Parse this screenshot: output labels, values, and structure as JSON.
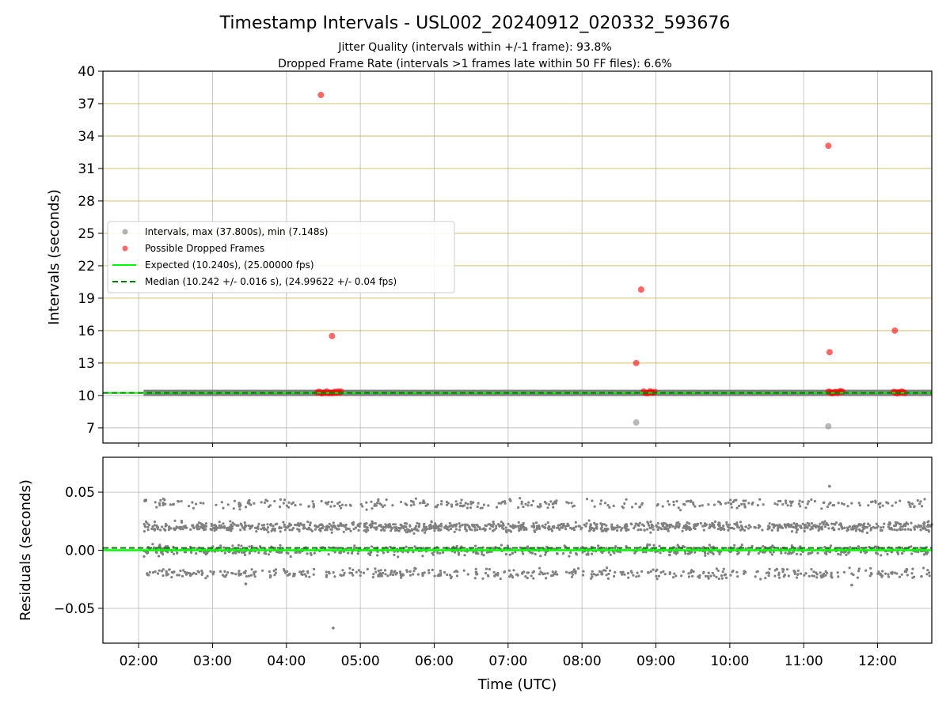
{
  "header": {
    "title": "Timestamp Intervals - USL002_20240912_020332_593676",
    "subtitle_line1": "Jitter Quality (intervals within +/-1 frame): 93.8%",
    "subtitle_line2": "Dropped Frame Rate (intervals >1 frames late within 50 FF files): 6.6%"
  },
  "colors": {
    "intervals": "#808080",
    "dropped": "#ff0000",
    "expected": "#00ff00",
    "median": "#008000",
    "hgrid_top": "#c8b04a",
    "grid": "#b0b0b0"
  },
  "chart_data": [
    {
      "type": "scatter",
      "ylabel": "Intervals (seconds)",
      "xlim": [
        "01:31",
        "12:44"
      ],
      "ylim": [
        5.6,
        40
      ],
      "yticks": [
        7,
        10,
        13,
        16,
        19,
        22,
        25,
        28,
        31,
        34,
        37,
        40
      ],
      "ytick_labels": [
        "7",
        "10",
        "13",
        "16",
        "19",
        "22",
        "25",
        "28",
        "31",
        "34",
        "37",
        "40"
      ],
      "grid": true,
      "legend_position": "center-left",
      "legend": [
        {
          "label": "Intervals, max (37.800s), min (7.148s)",
          "kind": "marker",
          "color": "#808080"
        },
        {
          "label": "Possible Dropped Frames",
          "kind": "marker",
          "color": "#ff0000"
        },
        {
          "label": "Expected (10.240s), (25.00000 fps)",
          "kind": "line",
          "color": "#00ff00"
        },
        {
          "label": "Median (10.242 +/- 0.016 s), (24.99622 +/- 0.04 fps)",
          "kind": "dashed",
          "color": "#008000"
        }
      ],
      "series": [
        {
          "name": "Intervals, max (37.800s), min (7.148s)",
          "band": {
            "x_start": "02:04",
            "x_end": "12:44",
            "y": 10.24
          },
          "points": [
            {
              "x": "08:44",
              "y": 7.5
            },
            {
              "x": "11:20",
              "y": 7.15
            }
          ]
        },
        {
          "name": "Possible Dropped Frames",
          "points": [
            {
              "x": "04:28",
              "y": 37.8
            },
            {
              "x": "11:20",
              "y": 33.1
            },
            {
              "x": "08:48",
              "y": 19.8
            },
            {
              "x": "12:14",
              "y": 16.0
            },
            {
              "x": "04:37",
              "y": 15.5
            },
            {
              "x": "11:21",
              "y": 14.0
            },
            {
              "x": "08:44",
              "y": 13.0
            }
          ],
          "clusters": [
            {
              "x_start": "04:25",
              "x_end": "04:45",
              "y": 10.3
            },
            {
              "x_start": "08:50",
              "x_end": "09:00",
              "y": 10.3
            },
            {
              "x_start": "11:20",
              "x_end": "11:32",
              "y": 10.3
            },
            {
              "x_start": "12:13",
              "x_end": "12:23",
              "y": 10.3
            }
          ]
        },
        {
          "name": "Expected (10.240s), (25.00000 fps)",
          "y": 10.24
        },
        {
          "name": "Median (10.242 +/- 0.016 s), (24.99622 +/- 0.04 fps)",
          "y": 10.242
        }
      ]
    },
    {
      "type": "scatter",
      "xlabel": "Time (UTC)",
      "ylabel": "Residuals (seconds)",
      "xlim": [
        "01:31",
        "12:44"
      ],
      "ylim": [
        -0.08,
        0.08
      ],
      "yticks": [
        -0.05,
        0.0,
        0.05
      ],
      "ytick_labels": [
        "−0.05",
        "0.00",
        "0.05"
      ],
      "xticks": [
        "02:00",
        "03:00",
        "04:00",
        "05:00",
        "06:00",
        "07:00",
        "08:00",
        "09:00",
        "10:00",
        "11:00",
        "12:00"
      ],
      "grid": true,
      "series": [
        {
          "name": "Residuals",
          "x_start": "02:04",
          "x_end": "12:44",
          "bands": [
            {
              "y": 0.04,
              "weight": 0.12
            },
            {
              "y": 0.02,
              "weight": 0.4
            },
            {
              "y": 0.0,
              "weight": 0.3
            },
            {
              "y": -0.02,
              "weight": 0.18
            }
          ],
          "outliers": [
            {
              "x": "04:38",
              "y": -0.067
            },
            {
              "x": "11:21",
              "y": 0.055
            },
            {
              "x": "03:27",
              "y": -0.029
            },
            {
              "x": "11:39",
              "y": -0.03
            }
          ]
        },
        {
          "name": "Expected",
          "y": 0.0
        },
        {
          "name": "Median",
          "y": 0.002
        }
      ]
    }
  ]
}
